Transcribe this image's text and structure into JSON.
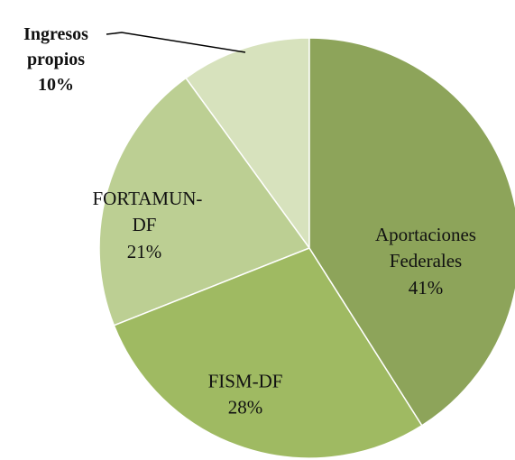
{
  "chart_data": {
    "type": "pie",
    "categories": [
      "Aportaciones Federales",
      "FISM-DF",
      "FORTAMUN-DF",
      "Ingresos propios"
    ],
    "values": [
      41,
      28,
      21,
      10
    ],
    "value_labels": [
      "41%",
      "28%",
      "21%",
      "10%"
    ],
    "colors": [
      "#8da45a",
      "#9fba62",
      "#bccf93",
      "#d7e2bd"
    ]
  }
}
